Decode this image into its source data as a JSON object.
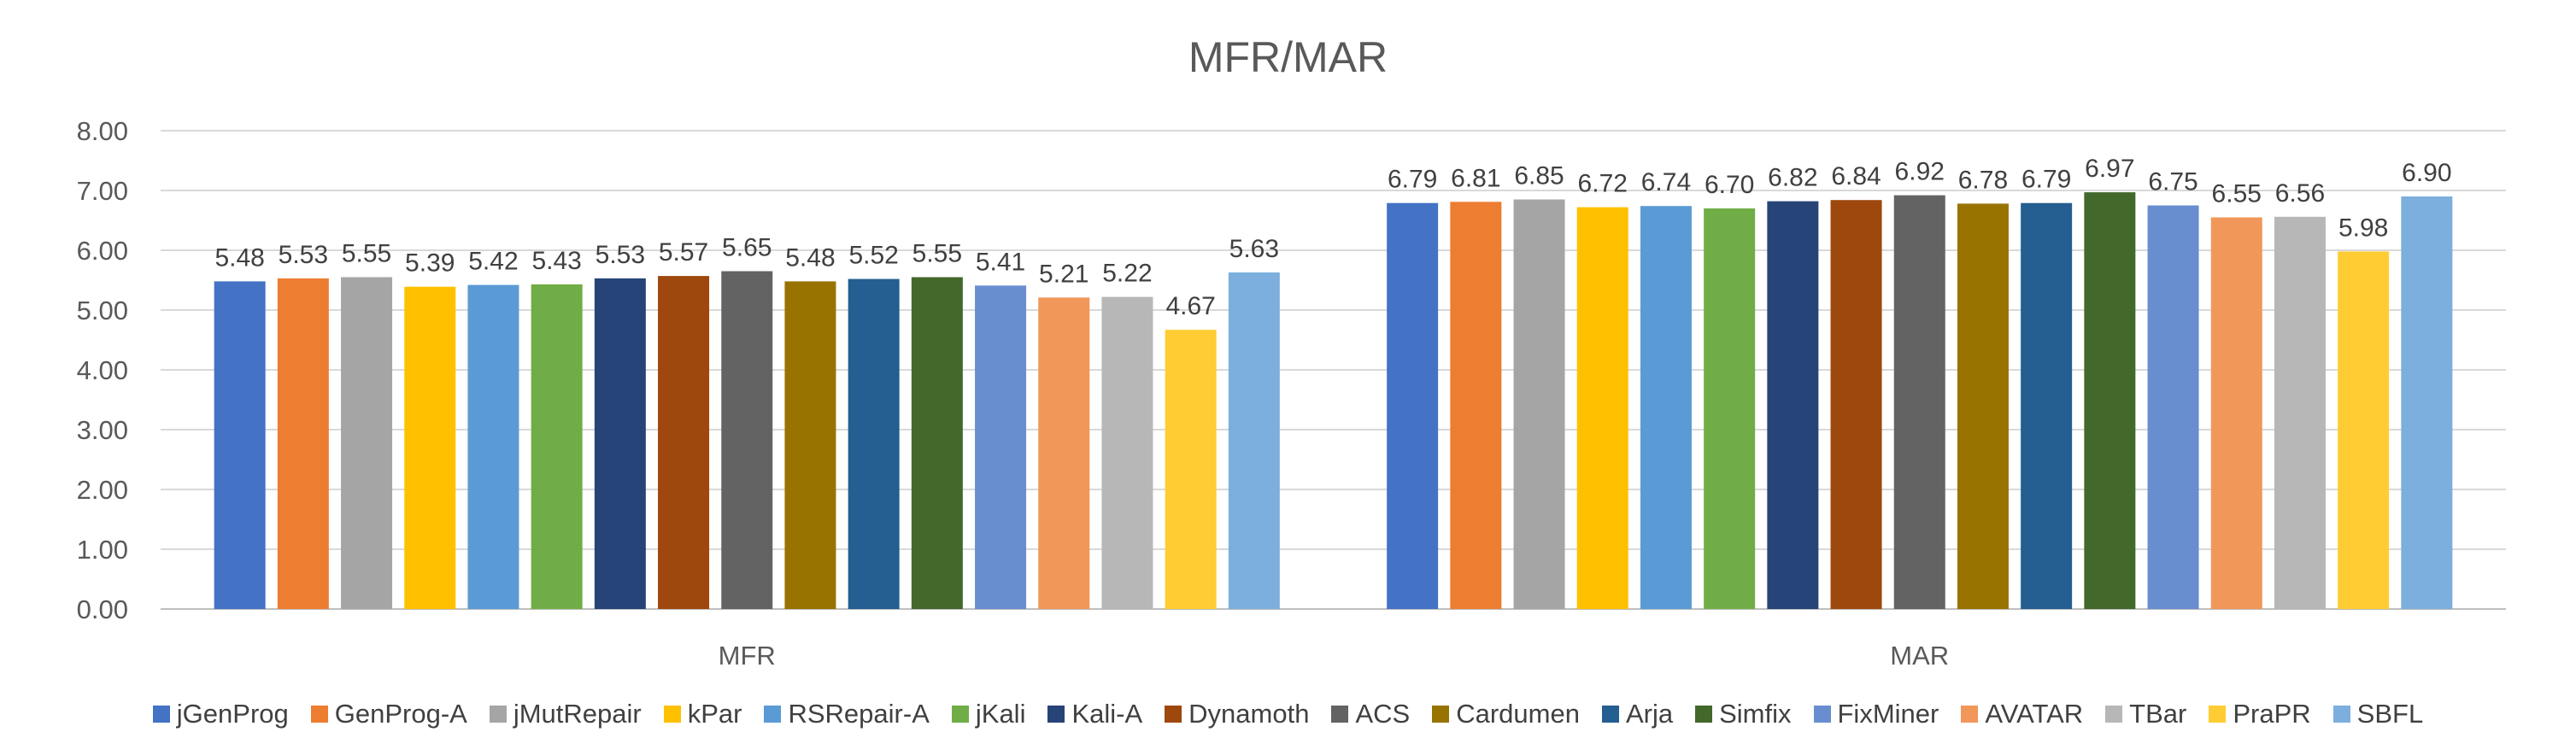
{
  "chart_data": {
    "type": "bar",
    "title": "MFR/MAR",
    "xlabel": "",
    "ylabel": "",
    "categories": [
      "MFR",
      "MAR"
    ],
    "ylim": [
      0,
      8
    ],
    "yticks": [
      "0.00",
      "1.00",
      "2.00",
      "3.00",
      "4.00",
      "5.00",
      "6.00",
      "7.00",
      "8.00"
    ],
    "grid": true,
    "legend_position": "bottom",
    "series": [
      {
        "name": "jGenProg",
        "color": "#4472C4",
        "values": [
          5.48,
          6.79
        ],
        "labels": [
          "5.48",
          "6.79"
        ]
      },
      {
        "name": "GenProg-A",
        "color": "#ED7D31",
        "values": [
          5.53,
          6.81
        ],
        "labels": [
          "5.53",
          "6.81"
        ]
      },
      {
        "name": "jMutRepair",
        "color": "#A5A5A5",
        "values": [
          5.55,
          6.85
        ],
        "labels": [
          "5.55",
          "6.85"
        ]
      },
      {
        "name": "kPar",
        "color": "#FFC000",
        "values": [
          5.39,
          6.72
        ],
        "labels": [
          "5.39",
          "6.72"
        ]
      },
      {
        "name": "RSRepair-A",
        "color": "#5B9BD5",
        "values": [
          5.42,
          6.74
        ],
        "labels": [
          "5.42",
          "6.74"
        ]
      },
      {
        "name": "jKali",
        "color": "#70AD47",
        "values": [
          5.43,
          6.7
        ],
        "labels": [
          "5.43",
          "6.70"
        ]
      },
      {
        "name": "Kali-A",
        "color": "#264478",
        "values": [
          5.53,
          6.82
        ],
        "labels": [
          "5.53",
          "6.82"
        ]
      },
      {
        "name": "Dynamoth",
        "color": "#9E480E",
        "values": [
          5.57,
          6.84
        ],
        "labels": [
          "5.57",
          "6.84"
        ]
      },
      {
        "name": "ACS",
        "color": "#636363",
        "values": [
          5.65,
          6.92
        ],
        "labels": [
          "5.65",
          "6.92"
        ]
      },
      {
        "name": "Cardumen",
        "color": "#997300",
        "values": [
          5.48,
          6.78
        ],
        "labels": [
          "5.48",
          "6.78"
        ]
      },
      {
        "name": "Arja",
        "color": "#255E91",
        "values": [
          5.52,
          6.79
        ],
        "labels": [
          "5.52",
          "6.79"
        ]
      },
      {
        "name": "Simfix",
        "color": "#43682B",
        "values": [
          5.55,
          6.97
        ],
        "labels": [
          "5.55",
          "6.97"
        ]
      },
      {
        "name": "FixMiner",
        "color": "#698ED0",
        "values": [
          5.41,
          6.75
        ],
        "labels": [
          "5.41",
          "6.75"
        ]
      },
      {
        "name": "AVATAR",
        "color": "#F1975A",
        "values": [
          5.21,
          6.55
        ],
        "labels": [
          "5.21",
          "6.55"
        ]
      },
      {
        "name": "TBar",
        "color": "#B7B7B7",
        "values": [
          5.22,
          6.56
        ],
        "labels": [
          "5.22",
          "6.56"
        ]
      },
      {
        "name": "PraPR",
        "color": "#FFCD33",
        "values": [
          4.67,
          5.98
        ],
        "labels": [
          "4.67",
          "5.98"
        ]
      },
      {
        "name": "SBFL",
        "color": "#7CAFDD",
        "values": [
          5.63,
          6.9
        ],
        "labels": [
          "5.63",
          "6.90"
        ]
      }
    ]
  }
}
